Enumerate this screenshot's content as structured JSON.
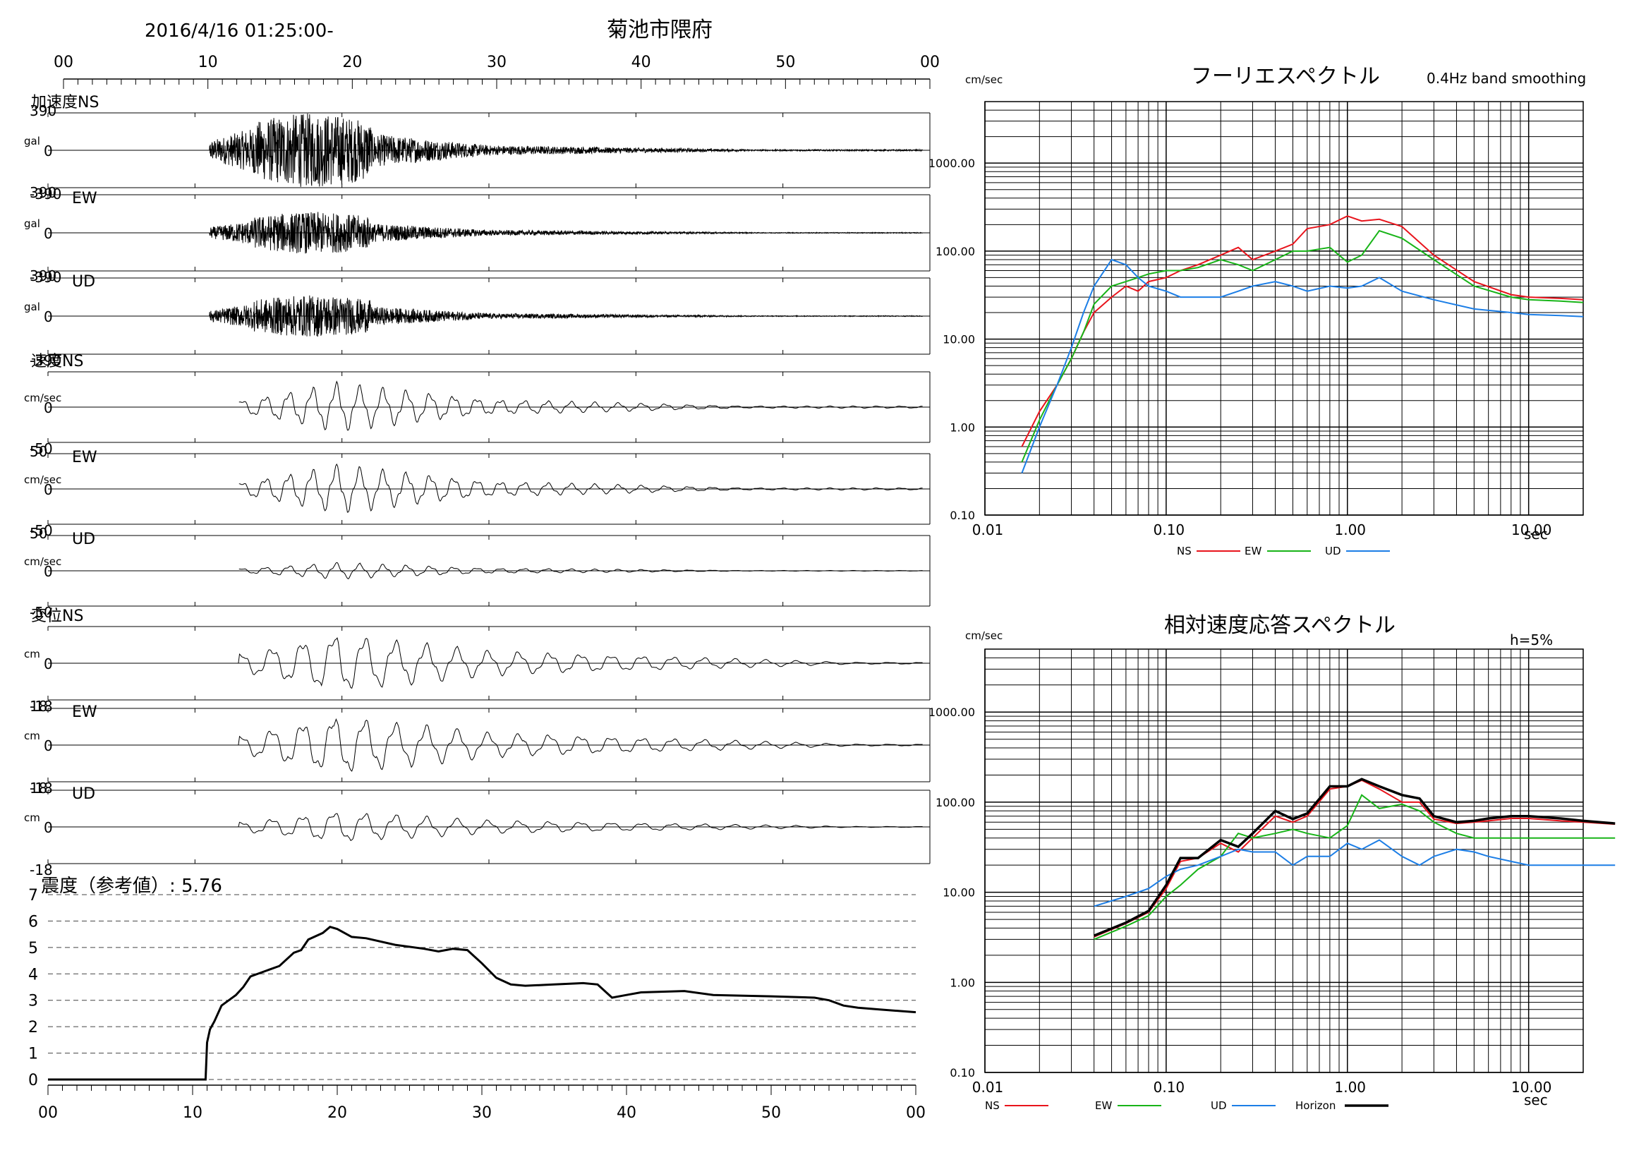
{
  "header": {
    "datetime": "2016/4/16 01:25:00-",
    "station": "菊池市隈府"
  },
  "time_ticks": [
    "00",
    "10",
    "20",
    "30",
    "40",
    "50",
    "00"
  ],
  "channels": [
    {
      "quantity": "加速度",
      "component": "NS",
      "unit": "gal",
      "max": "390",
      "zero": "0",
      "min": "-390"
    },
    {
      "quantity": "",
      "component": "EW",
      "unit": "gal",
      "max": "390",
      "zero": "0",
      "min": "-390"
    },
    {
      "quantity": "",
      "component": "UD",
      "unit": "gal",
      "max": "390",
      "zero": "0",
      "min": "-390"
    },
    {
      "quantity": "速度",
      "component": "NS",
      "unit": "cm/sec",
      "max": "",
      "zero": "0",
      "min": "-50"
    },
    {
      "quantity": "",
      "component": "EW",
      "unit": "cm/sec",
      "max": "50",
      "zero": "0",
      "min": "-50"
    },
    {
      "quantity": "",
      "component": "UD",
      "unit": "cm/sec",
      "max": "50",
      "zero": "0",
      "min": "-50"
    },
    {
      "quantity": "変位",
      "component": "NS",
      "unit": "cm",
      "max": "",
      "zero": "0",
      "min": "-18"
    },
    {
      "quantity": "",
      "component": "EW",
      "unit": "cm",
      "max": "18",
      "zero": "0",
      "min": "-18"
    },
    {
      "quantity": "",
      "component": "UD",
      "unit": "cm",
      "max": "18",
      "zero": "0",
      "min": "-18"
    }
  ],
  "intensity": {
    "label": "震度（参考値）: 5.76",
    "y_ticks": [
      "0",
      "1",
      "2",
      "3",
      "4",
      "5",
      "6",
      "7"
    ]
  },
  "fourier": {
    "title": "フーリエスペクトル",
    "note": "0.4Hz band smoothing",
    "y_unit": "cm/sec",
    "x_unit": "sec",
    "y_ticks": [
      "1000.00",
      "100.00",
      "10.00",
      "1.00",
      "0.10"
    ],
    "x_ticks": [
      "0.01",
      "0.10",
      "1.00",
      "10.00"
    ],
    "legend": [
      "NS",
      "EW",
      "UD"
    ]
  },
  "response": {
    "title": "相対速度応答スペクトル",
    "note": "h=5%",
    "y_unit": "cm/sec",
    "x_unit": "sec",
    "y_ticks": [
      "1000.00",
      "100.00",
      "10.00",
      "1.00",
      "0.10"
    ],
    "x_ticks": [
      "0.01",
      "0.10",
      "1.00",
      "10.00"
    ],
    "legend": [
      "NS",
      "EW",
      "UD",
      "Horizon"
    ]
  },
  "colors": {
    "NS": "#e8141c",
    "EW": "#18b418",
    "UD": "#1c7ee6",
    "Horizon": "#000000"
  },
  "chart_data": [
    {
      "type": "line",
      "title": "震度（参考値）: 5.76",
      "xlabel": "",
      "ylabel": "",
      "xlim": [
        0,
        60
      ],
      "ylim": [
        0,
        7
      ],
      "x": [
        0,
        10.9,
        11.0,
        11.2,
        11.5,
        12.0,
        12.5,
        13.0,
        13.5,
        14.0,
        15.0,
        16.0,
        17.0,
        17.5,
        18.0,
        19.0,
        19.5,
        20.0,
        21.0,
        22.0,
        24.0,
        26.0,
        27.0,
        28.0,
        29.0,
        30.0,
        31.0,
        32.0,
        33.0,
        35.0,
        37.0,
        38.0,
        39.0,
        40.0,
        41.0,
        44.0,
        46.0,
        50.0,
        53.0,
        54.0,
        55.0,
        56.0,
        57.5,
        60.0
      ],
      "series": [
        {
          "name": "",
          "values": [
            0,
            0,
            1.4,
            1.9,
            2.2,
            2.8,
            3.0,
            3.2,
            3.5,
            3.9,
            4.1,
            4.3,
            4.8,
            4.9,
            5.3,
            5.55,
            5.78,
            5.7,
            5.4,
            5.35,
            5.1,
            4.95,
            4.85,
            4.95,
            4.9,
            4.4,
            3.85,
            3.6,
            3.55,
            3.6,
            3.65,
            3.6,
            3.1,
            3.2,
            3.3,
            3.35,
            3.2,
            3.15,
            3.1,
            3.0,
            2.8,
            2.72,
            2.65,
            2.55
          ]
        }
      ]
    },
    {
      "type": "line",
      "title": "フーリエスペクトル",
      "xlabel": "sec",
      "ylabel": "cm/sec",
      "x_scale": "log",
      "y_scale": "log",
      "xlim": [
        0.01,
        20
      ],
      "ylim": [
        0.1,
        5000
      ],
      "x": [
        0.016,
        0.02,
        0.025,
        0.03,
        0.035,
        0.04,
        0.05,
        0.06,
        0.07,
        0.08,
        0.1,
        0.12,
        0.15,
        0.2,
        0.25,
        0.3,
        0.4,
        0.5,
        0.6,
        0.8,
        1.0,
        1.2,
        1.5,
        2.0,
        3.0,
        5.0,
        8.0,
        10.0,
        15.0,
        20.0
      ],
      "series": [
        {
          "name": "NS",
          "values": [
            0.6,
            1.5,
            3,
            6,
            12,
            20,
            30,
            40,
            35,
            45,
            50,
            60,
            70,
            90,
            110,
            80,
            100,
            120,
            180,
            200,
            250,
            220,
            230,
            190,
            90,
            45,
            32,
            30,
            29,
            28
          ]
        },
        {
          "name": "EW",
          "values": [
            0.4,
            1.2,
            3,
            6,
            12,
            25,
            40,
            45,
            50,
            55,
            60,
            60,
            65,
            80,
            70,
            60,
            80,
            100,
            100,
            110,
            75,
            90,
            170,
            140,
            80,
            40,
            30,
            28,
            27,
            26
          ]
        },
        {
          "name": "UD",
          "values": [
            0.3,
            1.0,
            3,
            8,
            20,
            40,
            80,
            70,
            50,
            40,
            35,
            30,
            30,
            30,
            35,
            40,
            45,
            40,
            35,
            40,
            38,
            40,
            50,
            35,
            28,
            22,
            20,
            19,
            18.5,
            18
          ]
        }
      ]
    },
    {
      "type": "line",
      "title": "相対速度応答スペクトル",
      "xlabel": "sec",
      "ylabel": "cm/sec",
      "x_scale": "log",
      "y_scale": "log",
      "xlim": [
        0.01,
        20
      ],
      "ylim": [
        0.1,
        5000
      ],
      "x": [
        0.04,
        0.06,
        0.08,
        0.1,
        0.12,
        0.15,
        0.2,
        0.25,
        0.3,
        0.4,
        0.5,
        0.6,
        0.8,
        1.0,
        1.2,
        1.5,
        2.0,
        2.5,
        3.0,
        4.0,
        5.0,
        6.0,
        8.0,
        10.0,
        15.0,
        20.0,
        30.0
      ],
      "series": [
        {
          "name": "NS",
          "values": [
            3.2,
            4.5,
            6,
            11,
            22,
            24,
            35,
            28,
            40,
            70,
            60,
            70,
            140,
            150,
            175,
            140,
            100,
            100,
            65,
            58,
            60,
            62,
            66,
            66,
            62,
            60,
            57
          ]
        },
        {
          "name": "EW",
          "values": [
            3.0,
            4.2,
            5.5,
            9,
            12,
            18,
            25,
            45,
            40,
            45,
            50,
            45,
            40,
            55,
            120,
            85,
            95,
            80,
            60,
            45,
            40,
            40,
            40,
            40,
            40,
            40,
            40
          ]
        },
        {
          "name": "UD",
          "values": [
            7,
            9,
            11,
            15,
            18,
            20,
            25,
            30,
            28,
            28,
            20,
            25,
            25,
            35,
            30,
            38,
            25,
            20,
            25,
            30,
            28,
            25,
            22,
            20,
            20,
            20,
            20
          ]
        },
        {
          "name": "Horizon",
          "values": [
            3.3,
            4.6,
            6.2,
            12,
            24,
            24,
            38,
            32,
            45,
            80,
            65,
            75,
            150,
            150,
            180,
            150,
            120,
            110,
            70,
            60,
            62,
            66,
            70,
            70,
            66,
            62,
            58
          ]
        }
      ]
    }
  ]
}
